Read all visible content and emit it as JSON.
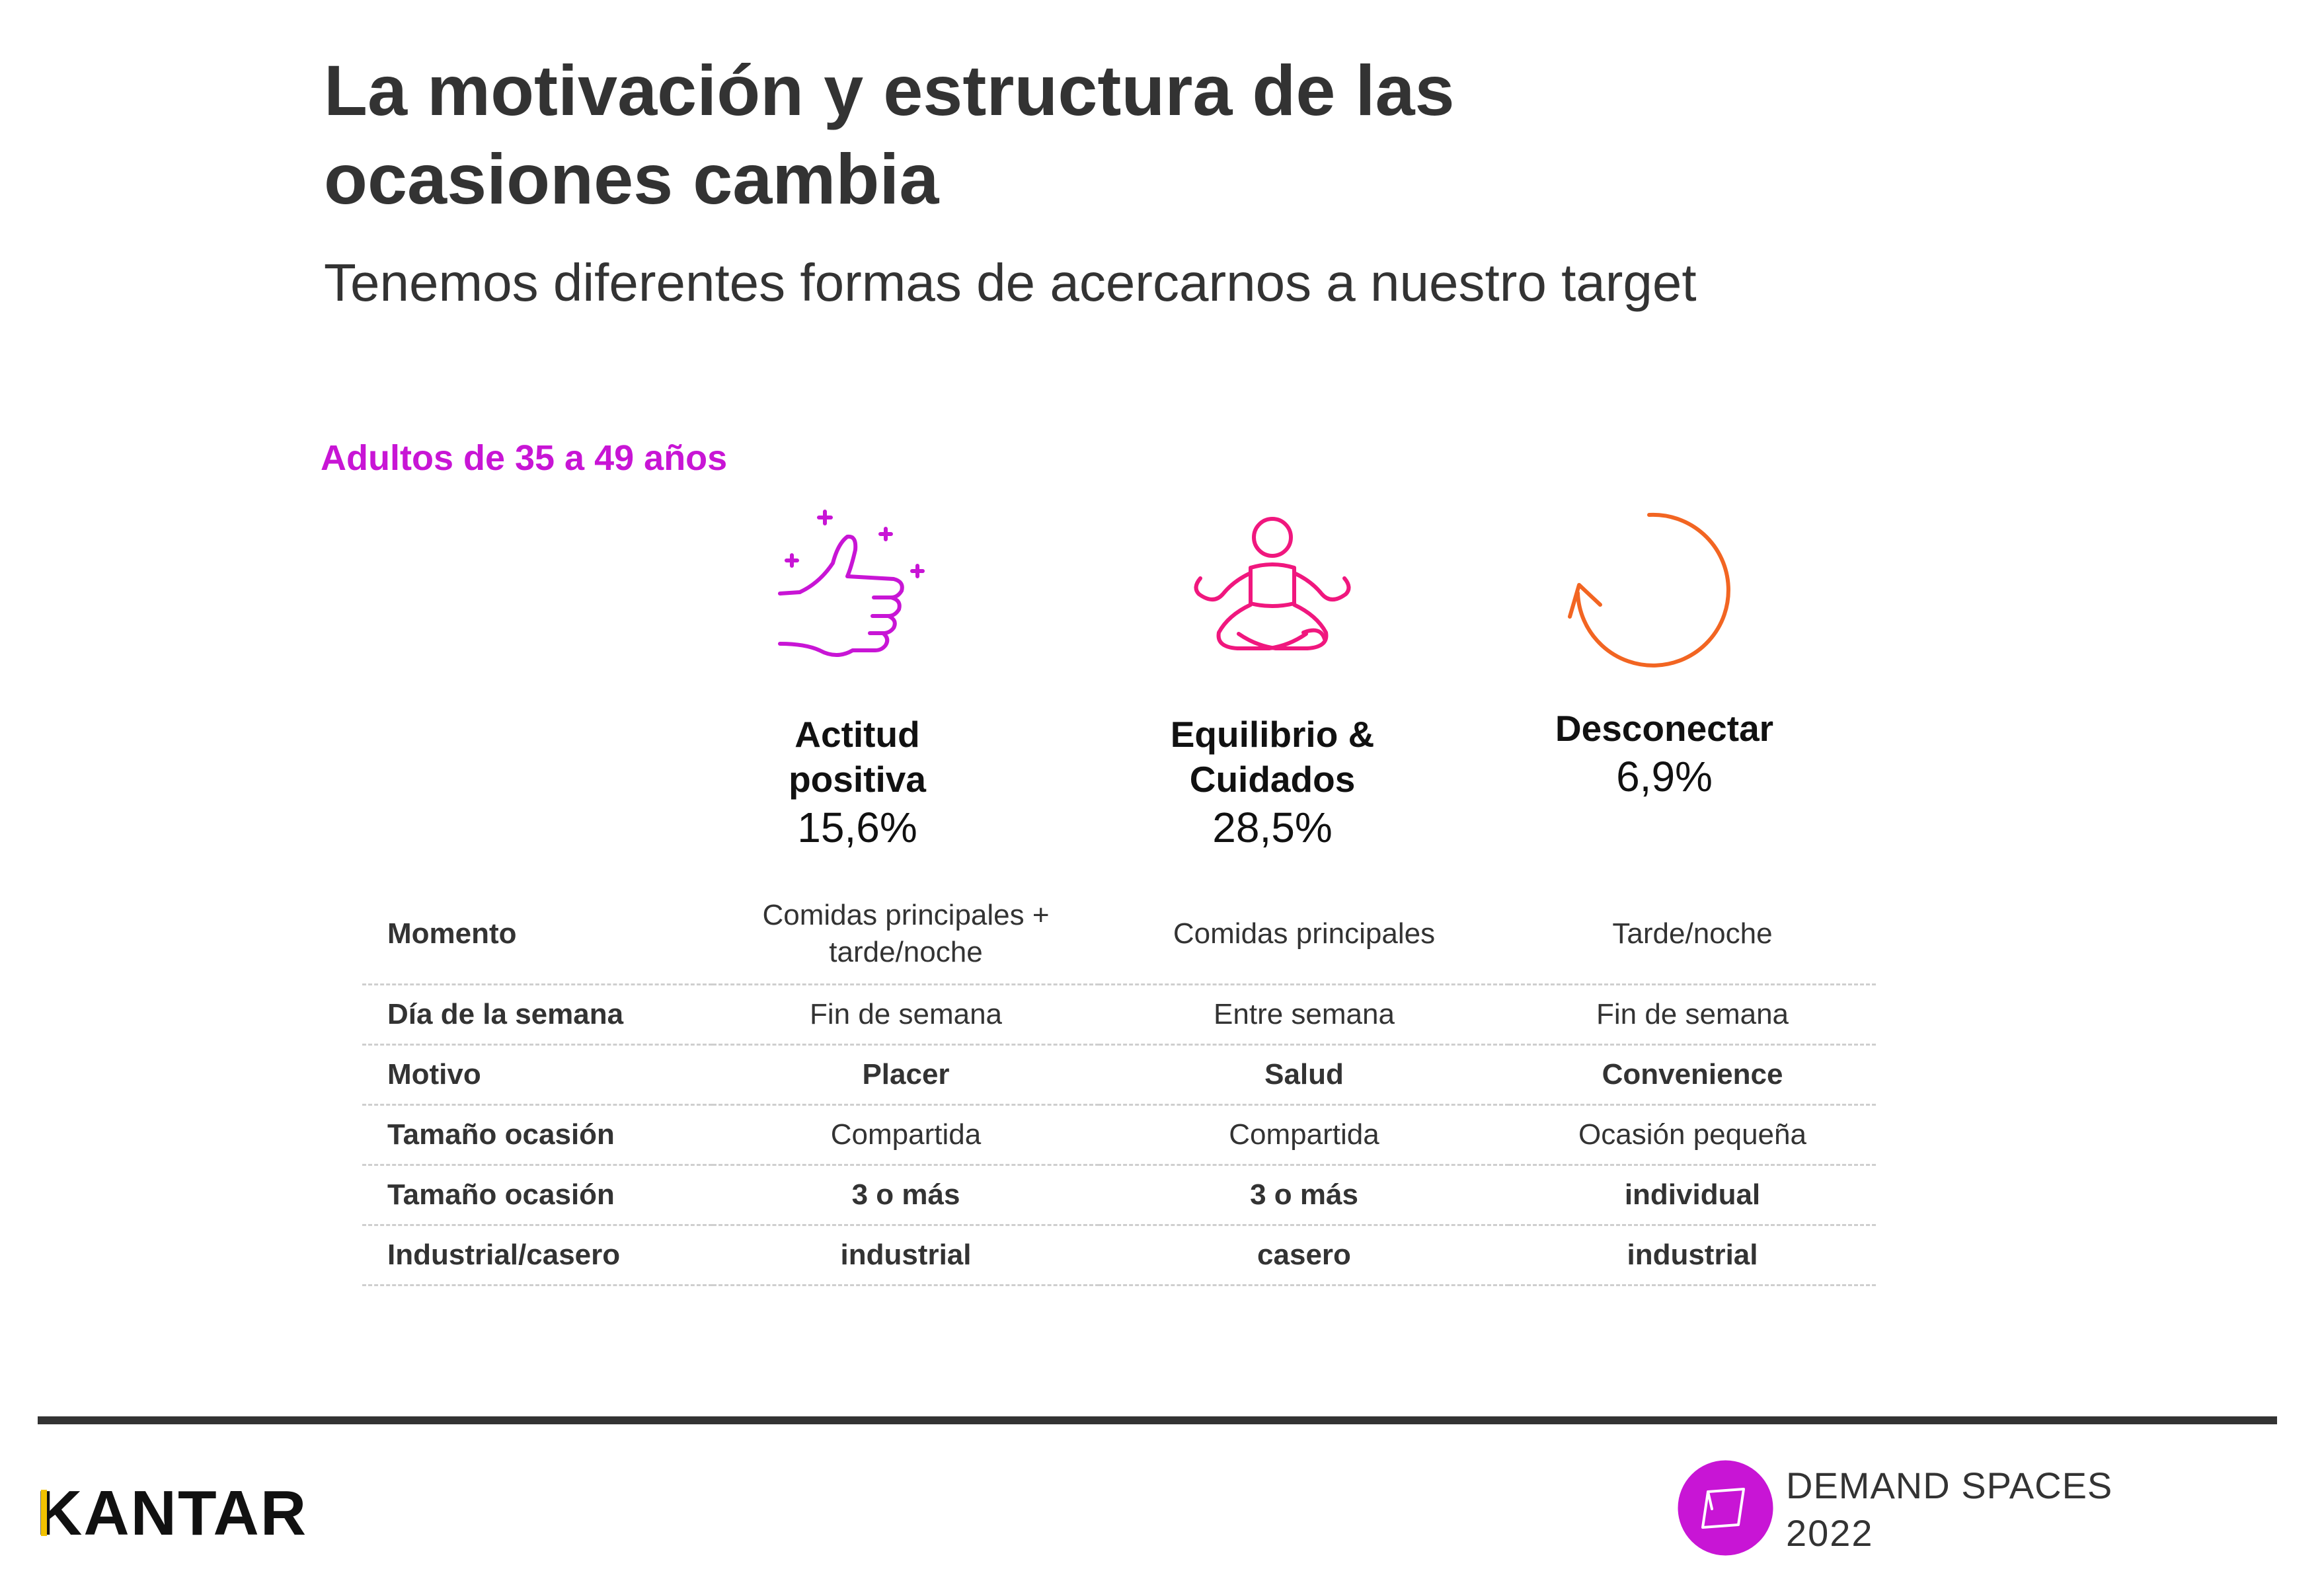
{
  "header": {
    "title": "La motivación y estructura de las ocasiones cambia",
    "subtitle": "Tenemos diferentes formas de acercarnos a nuestro target"
  },
  "segment_label": "Adultos de 35 a 49 años",
  "colors": {
    "magenta": "#c815d5",
    "pink": "#f0177e",
    "orange": "#f26522",
    "dark": "#333333",
    "kantar_yellow": "#f2c200"
  },
  "demand_spaces": [
    {
      "name": "Actitud positiva",
      "percent": "15,6%",
      "icon": "thumbs-up-icon",
      "color": "#c815d5"
    },
    {
      "name": "Equilibrio & Cuidados",
      "percent": "28,5%",
      "icon": "meditation-icon",
      "color": "#f0177e"
    },
    {
      "name": "Desconectar",
      "percent": "6,9%",
      "icon": "circular-arrow-icon",
      "color": "#f26522"
    }
  ],
  "table": {
    "rows": [
      {
        "label": "Momento",
        "values": [
          "Comidas principales + tarde/noche",
          "Comidas principales",
          "Tarde/noche"
        ]
      },
      {
        "label": "Día de la semana",
        "values": [
          "Fin de semana",
          "Entre semana",
          "Fin de semana"
        ]
      },
      {
        "label": "Motivo",
        "values": [
          "Placer",
          "Salud",
          "Convenience"
        ]
      },
      {
        "label": "Tamaño ocasión",
        "values": [
          "Compartida",
          "Compartida",
          "Ocasión pequeña"
        ]
      },
      {
        "label": "Tamaño ocasión",
        "values": [
          "3 o más",
          "3 o más",
          "individual"
        ]
      },
      {
        "label": "Industrial/casero",
        "values": [
          "industrial",
          "casero",
          "industrial"
        ]
      }
    ]
  },
  "footer": {
    "brand": "KANTAR",
    "product_title": "DEMAND SPACES",
    "product_year": "2022"
  }
}
